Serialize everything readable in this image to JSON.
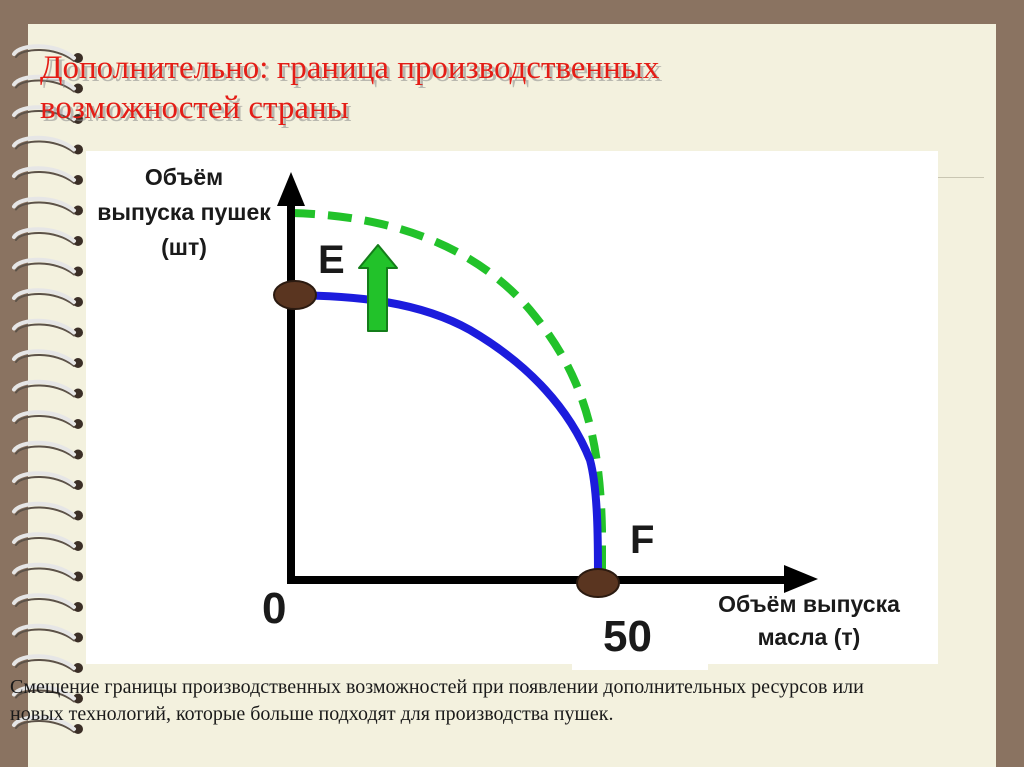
{
  "title": "Дополнительно: граница производственных возможностей страны",
  "axes": {
    "y_label": "Объём выпуска пушек (шт)",
    "x_label": "Объём выпуска масла (т)",
    "origin_label": "0",
    "x_value_label": "50"
  },
  "points": {
    "e_label": "E",
    "f_label": "F"
  },
  "curves": {
    "original_color": "#1c1cdd",
    "shifted_color": "#22c22a",
    "shift_arrow_color": "#22c22a",
    "point_color": "#5a3520"
  },
  "caption": "Смещение границы производственных возможностей при появлении дополнительных ресурсов или новых технологий, которые больше подходят для производства пушек."
}
